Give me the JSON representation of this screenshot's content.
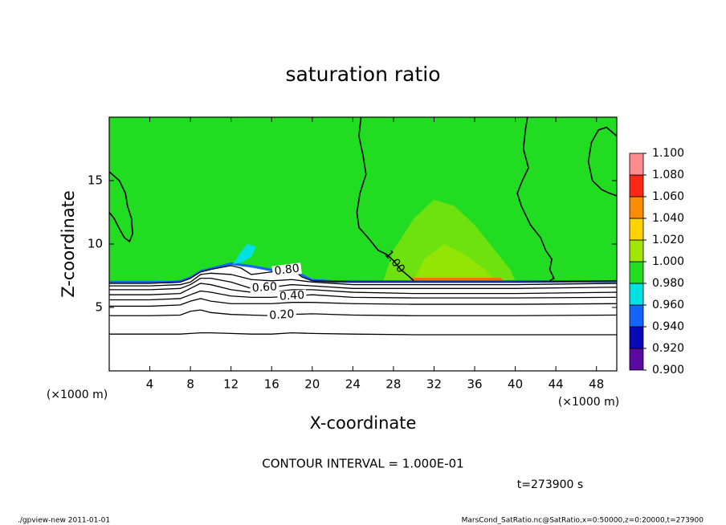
{
  "chart_data": {
    "type": "contour",
    "title": "saturation ratio",
    "x_label": "X-coordinate",
    "y_label": "Z-coordinate",
    "x_unit": "(×1000 m)",
    "y_unit": "(×1000 m)",
    "xlim": [
      0,
      50
    ],
    "ylim": [
      0,
      20
    ],
    "xticks": [
      4,
      8,
      12,
      16,
      20,
      24,
      28,
      32,
      36,
      40,
      44,
      48
    ],
    "yticks": [
      5,
      10,
      15
    ],
    "contour_interval": "CONTOUR INTERVAL = 1.000E-01",
    "time_label": "t=273900 s",
    "colorbar": {
      "ticks": [
        {
          "value": 0.9,
          "label": "0.900"
        },
        {
          "value": 0.92,
          "label": "0.920"
        },
        {
          "value": 0.94,
          "label": "0.940"
        },
        {
          "value": 0.96,
          "label": "0.960"
        },
        {
          "value": 0.98,
          "label": "0.980"
        },
        {
          "value": 1.0,
          "label": "1.000"
        },
        {
          "value": 1.02,
          "label": "1.020"
        },
        {
          "value": 1.04,
          "label": "1.040"
        },
        {
          "value": 1.06,
          "label": "1.060"
        },
        {
          "value": 1.08,
          "label": "1.080"
        },
        {
          "value": 1.1,
          "label": "1.100"
        }
      ],
      "colors": [
        "#5a0aa0",
        "#0a0ab4",
        "#1464ff",
        "#00e1e1",
        "#22dc22",
        "#a0e600",
        "#ffd200",
        "#ff8c00",
        "#ff2814",
        "#ff8c8c"
      ]
    },
    "regions": [
      {
        "value": 0.99,
        "x": [
          0,
          6,
          7,
          8,
          9,
          10,
          12,
          14,
          16,
          18,
          19,
          20,
          22,
          50,
          50,
          0
        ],
        "z": [
          7.05,
          7.05,
          7.1,
          7.4,
          7.9,
          8.1,
          8.5,
          8.3,
          8.0,
          8.1,
          7.6,
          7.2,
          7.1,
          7.1,
          20,
          20
        ]
      },
      {
        "value": 1.002,
        "x": [
          27,
          28,
          30,
          32,
          34,
          36,
          38,
          39.5,
          40
        ],
        "z": [
          7.1,
          9.5,
          12,
          13.5,
          13,
          11.5,
          9.5,
          8,
          7.1
        ]
      },
      {
        "value": 1.008,
        "x": [
          30,
          31,
          33,
          35,
          37,
          38
        ],
        "z": [
          7.1,
          8.8,
          10,
          9.2,
          8,
          7.1
        ]
      },
      {
        "value": 1.055,
        "x": [
          29.5,
          30,
          38.5,
          39
        ],
        "z": [
          7.1,
          7.35,
          7.35,
          7.1
        ]
      },
      {
        "value": 0.95,
        "x": [
          0,
          6,
          7,
          8,
          9,
          10,
          12,
          14,
          16,
          18,
          19,
          20,
          22,
          50,
          50,
          22,
          20,
          19,
          18,
          16,
          14,
          12,
          10,
          9,
          8,
          7,
          6,
          0
        ],
        "z": [
          7.1,
          7.1,
          7.15,
          7.45,
          7.95,
          8.15,
          8.55,
          8.35,
          8.05,
          8.15,
          7.65,
          7.25,
          7.15,
          7.15,
          6.95,
          6.95,
          7.05,
          7.45,
          7.95,
          7.85,
          8.15,
          8.35,
          7.95,
          7.75,
          7.25,
          6.95,
          6.9,
          6.9
        ]
      },
      {
        "value": 0.97,
        "x": [
          12.2,
          13.2,
          14.0,
          14.5,
          13.6,
          12.8
        ],
        "z": [
          8.4,
          8.6,
          9.0,
          9.8,
          10.0,
          9.2
        ]
      }
    ],
    "contours": [
      {
        "level": 0.1,
        "x": [
          0,
          4,
          7,
          8,
          9,
          10,
          12,
          14,
          16,
          18,
          20,
          24,
          30,
          40,
          50
        ],
        "z": [
          2.9,
          2.9,
          2.9,
          2.95,
          3.0,
          3.0,
          2.95,
          2.9,
          2.9,
          3.0,
          2.95,
          2.9,
          2.85,
          2.85,
          2.85
        ]
      },
      {
        "level": 0.2,
        "label": "0.20",
        "x": [
          0,
          4,
          7,
          8,
          9,
          10,
          12,
          14,
          16,
          18,
          20,
          24,
          30,
          40,
          50
        ],
        "z": [
          4.35,
          4.35,
          4.4,
          4.7,
          4.8,
          4.6,
          4.45,
          4.4,
          4.35,
          4.45,
          4.5,
          4.4,
          4.35,
          4.35,
          4.4
        ]
      },
      {
        "level": 0.3,
        "x": [
          0,
          4,
          7,
          8,
          9,
          10,
          12,
          14,
          16,
          18,
          20,
          24,
          30,
          40,
          50
        ],
        "z": [
          5.1,
          5.1,
          5.2,
          5.5,
          5.7,
          5.5,
          5.3,
          5.3,
          5.3,
          5.4,
          5.4,
          5.3,
          5.25,
          5.25,
          5.3
        ]
      },
      {
        "level": 0.4,
        "label": "0.40",
        "x": [
          0,
          4,
          7,
          8,
          9,
          10,
          12,
          14,
          16,
          18,
          20,
          24,
          30,
          40,
          50
        ],
        "z": [
          5.6,
          5.6,
          5.7,
          6.0,
          6.3,
          6.2,
          5.9,
          5.8,
          5.8,
          5.9,
          6.0,
          5.8,
          5.75,
          5.75,
          5.8
        ]
      },
      {
        "level": 0.5,
        "x": [
          0,
          4,
          7,
          8,
          9,
          10,
          12,
          14,
          16,
          18,
          20,
          24,
          30,
          40,
          50
        ],
        "z": [
          6.0,
          6.0,
          6.1,
          6.5,
          6.9,
          6.8,
          6.4,
          6.2,
          6.2,
          6.4,
          6.4,
          6.2,
          6.1,
          6.1,
          6.2
        ]
      },
      {
        "level": 0.6,
        "label": "0.60",
        "x": [
          0,
          4,
          7,
          8,
          9,
          10,
          12,
          14,
          16,
          18,
          20,
          24,
          30,
          40,
          50
        ],
        "z": [
          6.4,
          6.4,
          6.5,
          6.8,
          7.3,
          7.3,
          7.0,
          6.5,
          6.6,
          6.8,
          6.7,
          6.5,
          6.5,
          6.5,
          6.6
        ]
      },
      {
        "level": 0.7,
        "x": [
          0,
          4,
          7,
          8,
          9,
          10,
          12,
          14,
          16,
          18,
          20,
          24,
          30,
          40,
          50
        ],
        "z": [
          6.7,
          6.7,
          6.8,
          7.0,
          7.6,
          7.7,
          7.6,
          7.2,
          7.1,
          7.2,
          7.0,
          6.8,
          6.8,
          6.8,
          6.9
        ]
      },
      {
        "level": 0.8,
        "label": "0.80",
        "x": [
          0,
          4,
          7,
          8,
          9,
          10,
          12,
          13,
          14,
          16,
          18,
          19,
          20,
          24,
          30,
          40,
          50
        ],
        "z": [
          6.9,
          6.9,
          7.0,
          7.3,
          7.8,
          8.0,
          8.3,
          8.1,
          7.6,
          7.8,
          8.0,
          7.4,
          7.1,
          7.0,
          7.0,
          7.0,
          7.1
        ]
      },
      {
        "level": 1.0,
        "label": "1.00",
        "x": [
          24.8,
          24.6,
          25.0,
          25.3,
          24.7,
          24.4,
          24.6,
          25.5,
          26.0,
          26.5,
          27.3,
          28.0,
          28.7,
          29.6,
          30.0
        ],
        "z": [
          20,
          18.5,
          17,
          15.5,
          14,
          12.5,
          11.3,
          10.5,
          10,
          9.5,
          9.2,
          8.7,
          8.0,
          7.4,
          7.1
        ]
      },
      {
        "level": 1.0,
        "x": [
          41.2,
          41.0,
          40.8,
          41.3,
          40.7,
          40.2,
          40.6,
          41.5,
          42.5,
          43.0,
          43.6,
          43.4,
          43.8,
          43.4
        ],
        "z": [
          20,
          19,
          17.5,
          16,
          15,
          14,
          13,
          11.5,
          10.5,
          9.5,
          8.8,
          8.0,
          7.3,
          7.1
        ]
      },
      {
        "level": 1.0,
        "x": [
          0,
          1.0,
          1.6,
          1.8,
          2.2,
          2.3,
          2.0,
          1.5,
          1.0,
          0.5,
          0
        ],
        "z": [
          15.7,
          15,
          14,
          13,
          12,
          10.8,
          10.2,
          10.5,
          11.2,
          12.0,
          12.5
        ]
      },
      {
        "level": 1.0,
        "x": [
          50,
          49,
          48.2,
          47.5,
          47.2,
          47.6,
          48.5,
          49.3,
          50
        ],
        "z": [
          18.5,
          19.2,
          19,
          18,
          16.5,
          15,
          14.3,
          14,
          13.8
        ]
      }
    ]
  },
  "footer": {
    "left": "./gpview-new  2011-01-01",
    "right": "MarsCond_SatRatio.nc@SatRatio,x=0:50000,z=0:20000,t=273900"
  }
}
